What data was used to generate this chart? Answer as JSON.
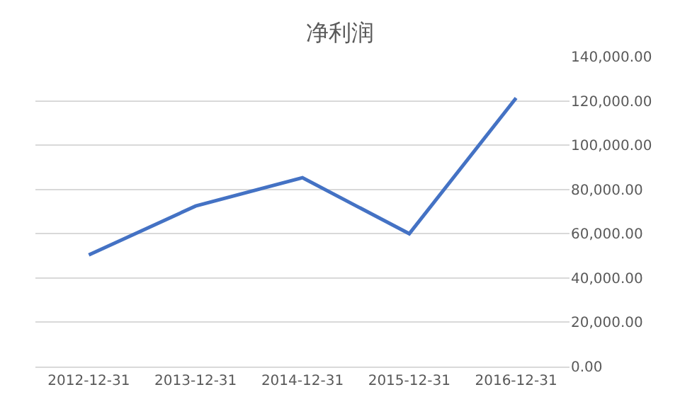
{
  "chart_data": {
    "type": "line",
    "title": "净利润",
    "categories": [
      "2012-12-31",
      "2013-12-31",
      "2014-12-31",
      "2015-12-31",
      "2016-12-31"
    ],
    "series": [
      {
        "color": "#4472c4",
        "values": [
          50400,
          72500,
          85300,
          60000,
          121300
        ]
      }
    ],
    "ylim": [
      0,
      140000
    ],
    "yticks": [
      {
        "value": 0,
        "label": "0.00"
      },
      {
        "value": 20000,
        "label": "20,000.00"
      },
      {
        "value": 40000,
        "label": "40,000.00"
      },
      {
        "value": 60000,
        "label": "60,000.00"
      },
      {
        "value": 80000,
        "label": "80,000.00"
      },
      {
        "value": 100000,
        "label": "100,000.00"
      },
      {
        "value": 120000,
        "label": "120,000.00"
      },
      {
        "value": 140000,
        "label": "140,000.00"
      }
    ],
    "grid": "y",
    "legend": false,
    "marker": "none",
    "line_style": "solid"
  }
}
